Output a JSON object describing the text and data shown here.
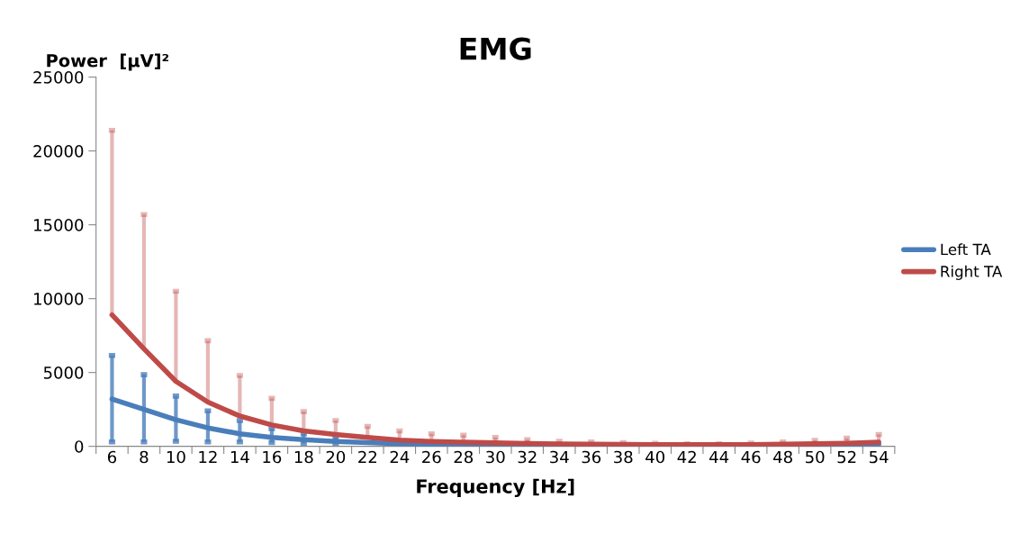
{
  "chart_data": {
    "type": "line",
    "title": "EMG",
    "xlabel": "Frequency [Hz]",
    "ylabel": "Power  [µV]²",
    "categories": [
      "6",
      "8",
      "10",
      "12",
      "14",
      "16",
      "18",
      "20",
      "22",
      "24",
      "26",
      "28",
      "30",
      "32",
      "34",
      "36",
      "38",
      "40",
      "42",
      "44",
      "46",
      "48",
      "50",
      "52",
      "54"
    ],
    "series": [
      {
        "name": "Left TA",
        "color": "#4a7ebb",
        "values": [
          3200,
          2500,
          1800,
          1250,
          850,
          600,
          450,
          330,
          250,
          180,
          140,
          110,
          90,
          80,
          70,
          60,
          60,
          60,
          60,
          70,
          80,
          90,
          100,
          110,
          130
        ],
        "errors": [
          [
            300,
            6150
          ],
          [
            300,
            4850
          ],
          [
            350,
            3400
          ],
          [
            300,
            2400
          ],
          [
            300,
            1750
          ],
          [
            250,
            1200
          ],
          [
            200,
            850
          ],
          [
            150,
            600
          ],
          null,
          null,
          null,
          null,
          null,
          null,
          null,
          null,
          null,
          null,
          null,
          null,
          null,
          null,
          null,
          null,
          null
        ]
      },
      {
        "name": "Right TA",
        "color": "#be4b48",
        "values": [
          8900,
          6600,
          4400,
          3000,
          2050,
          1450,
          1050,
          800,
          600,
          420,
          330,
          280,
          230,
          190,
          160,
          140,
          130,
          120,
          110,
          110,
          120,
          140,
          170,
          210,
          280
        ],
        "errors": [
          [
            8900,
            21400
          ],
          [
            6600,
            15700
          ],
          [
            4400,
            10500
          ],
          [
            3000,
            7150
          ],
          [
            2050,
            4800
          ],
          [
            1450,
            3250
          ],
          [
            1050,
            2350
          ],
          [
            800,
            1750
          ],
          [
            600,
            1350
          ],
          [
            420,
            1050
          ],
          [
            330,
            850
          ],
          [
            280,
            750
          ],
          [
            230,
            600
          ],
          [
            190,
            450
          ],
          [
            160,
            350
          ],
          [
            140,
            300
          ],
          [
            130,
            250
          ],
          [
            120,
            200
          ],
          [
            110,
            180
          ],
          [
            110,
            180
          ],
          [
            120,
            220
          ],
          [
            140,
            300
          ],
          [
            170,
            400
          ],
          [
            210,
            550
          ],
          [
            280,
            800
          ]
        ]
      }
    ],
    "ylim": [
      0,
      25000
    ],
    "yticks": [
      0,
      5000,
      10000,
      15000,
      20000,
      25000
    ],
    "grid": false,
    "legend": "right",
    "marker": "none",
    "line_style": "solid"
  }
}
